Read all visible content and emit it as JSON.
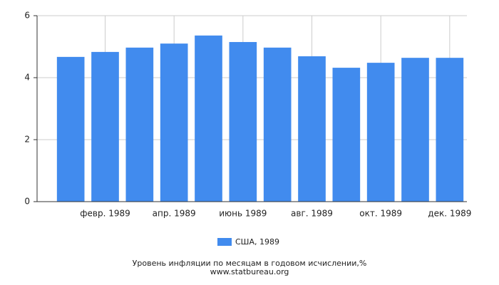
{
  "chart_data": {
    "type": "bar",
    "title": "Уровень инфляции по месяцам в годовом исчислении,%",
    "subtitle": "www.statbureau.org",
    "categories": [
      null,
      "февр. 1989",
      null,
      "апр. 1989",
      null,
      "июнь 1989",
      null,
      "авг. 1989",
      null,
      "окт. 1989",
      null,
      "дек. 1989"
    ],
    "series": [
      {
        "name": "США, 1989",
        "color": "#418bee",
        "values": [
          4.67,
          4.83,
          4.97,
          5.1,
          5.36,
          5.15,
          4.97,
          4.69,
          4.32,
          4.48,
          4.64,
          4.64
        ]
      }
    ],
    "ylim": [
      0,
      6
    ],
    "yticks": [
      0,
      2,
      4,
      6
    ],
    "grid": true
  }
}
